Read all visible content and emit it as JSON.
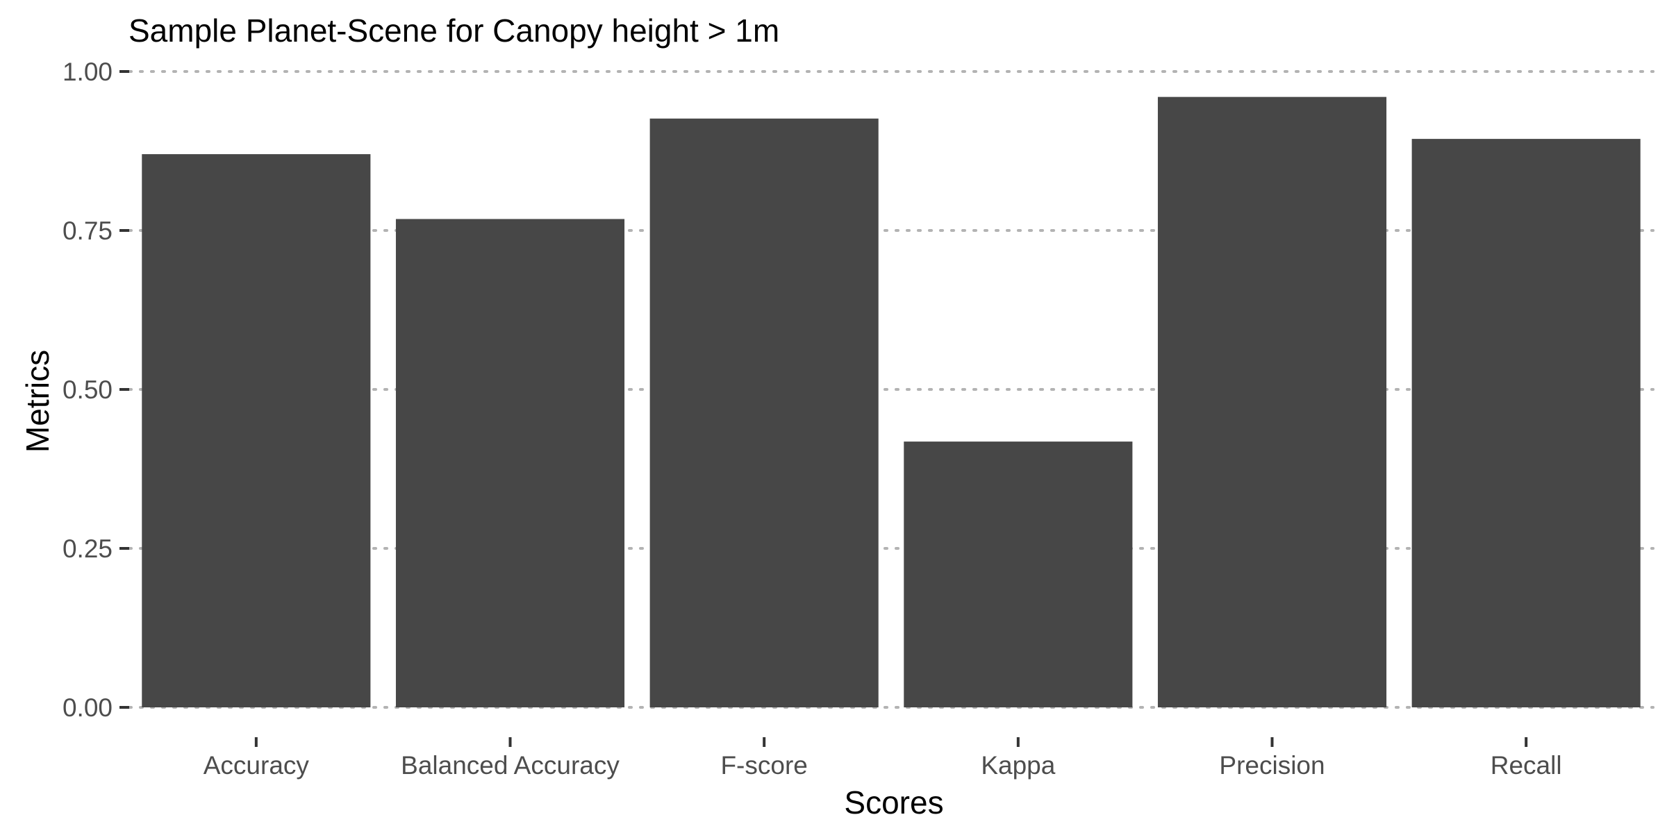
{
  "chart_data": {
    "type": "bar",
    "title": "Sample Planet-Scene for Canopy height > 1m",
    "xlabel": "Scores",
    "ylabel": "Metrics",
    "categories": [
      "Accuracy",
      "Balanced Accuracy",
      "F-score",
      "Kappa",
      "Precision",
      "Recall"
    ],
    "values": [
      0.87,
      0.768,
      0.926,
      0.418,
      0.96,
      0.894
    ],
    "ylim": [
      0,
      1
    ],
    "yticks": [
      "0.00",
      "0.25",
      "0.50",
      "0.75",
      "1.00"
    ],
    "ytick_values": [
      0,
      0.25,
      0.5,
      0.75,
      1.0
    ],
    "grid": "horizontal-dotted",
    "legend": "none",
    "bar_color": "#474747",
    "grid_color": "#b3b3b3"
  }
}
